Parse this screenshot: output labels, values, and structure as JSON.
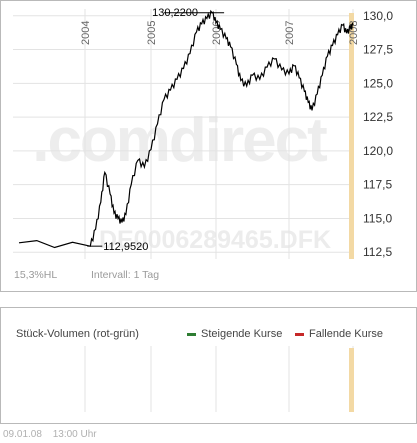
{
  "chart_data": [
    {
      "type": "line",
      "x_tick_labels": [
        "2004",
        "2005",
        "2006",
        "2007",
        "2008"
      ],
      "ylim": [
        112.0,
        130.5
      ],
      "y_ticks": [
        "112,5",
        "115,0",
        "117,5",
        "120,0",
        "122,5",
        "125,0",
        "127,5",
        "130,0"
      ],
      "y_tick_values": [
        112.5,
        115.0,
        117.5,
        120.0,
        122.5,
        125.0,
        127.5,
        130.0
      ],
      "grid": true,
      "annotations": {
        "max_label": "130,2200",
        "min_label": "112,9520"
      },
      "watermark_brand": ".comdirect",
      "watermark_isin": "DE0006289465.DFK",
      "series": [
        {
          "color": "#000000",
          "x": [
            0.0,
            0.08,
            0.16,
            0.24,
            0.3,
            0.38,
            0.44,
            0.5,
            0.56,
            0.62,
            0.7,
            0.8,
            0.9,
            1.0,
            1.1,
            1.2,
            1.3,
            1.4,
            1.5,
            1.6,
            1.7,
            1.78,
            1.86,
            1.94,
            2.0,
            2.06,
            2.14,
            2.2,
            2.28,
            2.34,
            2.42,
            2.5,
            2.6,
            2.7,
            2.8,
            2.9,
            3.0,
            3.08,
            3.16,
            3.24,
            3.3,
            3.36,
            3.44,
            3.52,
            3.6,
            3.68,
            3.76,
            3.84,
            3.9,
            3.96,
            4.0
          ],
          "y": [
            113.2,
            112.95,
            114.2,
            116.2,
            118.4,
            116.8,
            115.4,
            115.0,
            114.7,
            115.3,
            117.5,
            119.3,
            118.8,
            120.1,
            122.0,
            123.8,
            124.5,
            125.3,
            126.1,
            127.2,
            128.8,
            129.4,
            129.8,
            130.22,
            129.5,
            129.0,
            128.3,
            127.7,
            126.4,
            125.2,
            124.8,
            125.6,
            125.3,
            126.2,
            126.8,
            126.0,
            125.7,
            126.3,
            125.4,
            124.4,
            123.6,
            123.0,
            124.2,
            125.6,
            127.0,
            127.8,
            128.6,
            129.3,
            128.7,
            129.1,
            129.3
          ]
        }
      ]
    },
    {
      "type": "bar",
      "title": "Stück-Volumen (rot-grün)",
      "legend": [
        {
          "label": "Steigende Kurse",
          "color": "#2e7d32"
        },
        {
          "label": "Fallende Kurse",
          "color": "#c62828"
        }
      ],
      "series": []
    }
  ],
  "info": {
    "hl": "15,3%HL",
    "interval": "Intervall: 1 Tag"
  },
  "footer": {
    "date": "09.01.08",
    "time": "13:00 Uhr"
  },
  "colors": {
    "price_line": "#000000",
    "grid": "#e3e3e3",
    "highlight_band": "#f3d9a4",
    "watermark": "#f2f2f2",
    "watermark_accent": "#fbe8c6"
  }
}
